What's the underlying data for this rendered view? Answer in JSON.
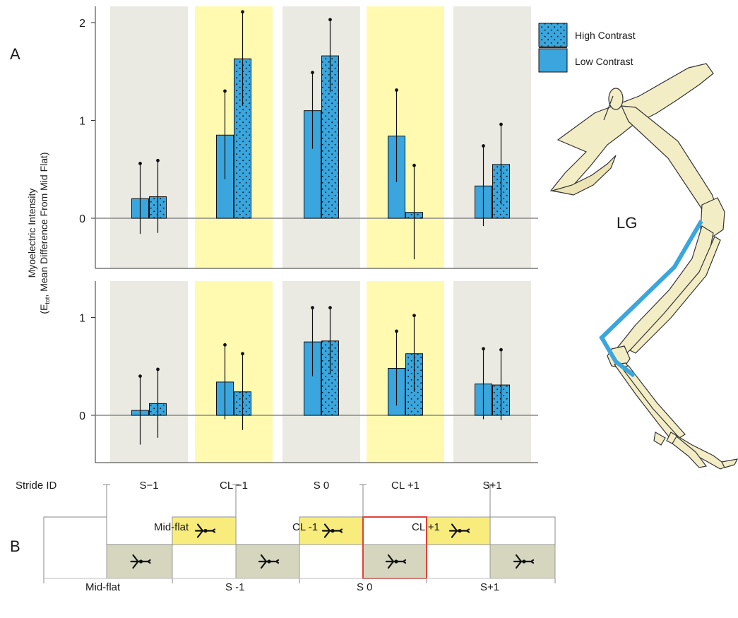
{
  "panel_labels": {
    "a": "A",
    "b": "B"
  },
  "legend": {
    "high": "High Contrast",
    "low": "Low Contrast"
  },
  "ylabel": {
    "line1": "Myoelectric Intensity",
    "line2_pre": "(E",
    "line2_sub": "tot",
    "line2_post": ", Mean Difference From Mid Flat)"
  },
  "stride_id_label": "Stride ID",
  "leg_label": "LG",
  "colors": {
    "bar": "#3aa6dd",
    "grey_band": "#ebeae2",
    "yellow_band": "#fffab0",
    "zero_line": "#888888",
    "step_yellow": "#f8ec7c",
    "step_grey": "#d6d6bf",
    "highlight": "#e0403a",
    "muscle": "#3aa6dd",
    "bone": "#f3edc6"
  },
  "chart_data": [
    {
      "type": "bar",
      "panel": "upper",
      "categories": [
        "S−1",
        "CL −1",
        "S 0",
        "CL +1",
        "S+1"
      ],
      "category_bands": [
        "grey",
        "yellow",
        "grey",
        "yellow",
        "grey"
      ],
      "series": [
        {
          "name": "Low Contrast",
          "values": [
            0.2,
            0.85,
            1.1,
            0.84,
            0.33
          ],
          "error": [
            0.36,
            0.45,
            0.39,
            0.47,
            0.41
          ]
        },
        {
          "name": "High Contrast",
          "values": [
            0.22,
            1.63,
            1.66,
            0.06,
            0.55
          ],
          "error": [
            0.37,
            0.48,
            0.37,
            0.48,
            0.41
          ]
        }
      ],
      "yticks": [
        0,
        1,
        2
      ],
      "ylim": [
        -0.5,
        2.15
      ],
      "legend_position": "top-right"
    },
    {
      "type": "bar",
      "panel": "lower",
      "categories": [
        "S−1",
        "CL −1",
        "S 0",
        "CL +1",
        "S+1"
      ],
      "category_bands": [
        "grey",
        "yellow",
        "grey",
        "yellow",
        "grey"
      ],
      "series": [
        {
          "name": "Low Contrast",
          "values": [
            0.05,
            0.34,
            0.75,
            0.48,
            0.32
          ],
          "error": [
            0.35,
            0.38,
            0.35,
            0.38,
            0.36
          ]
        },
        {
          "name": "High Contrast",
          "values": [
            0.12,
            0.24,
            0.76,
            0.63,
            0.31
          ],
          "error": [
            0.35,
            0.39,
            0.34,
            0.39,
            0.36
          ]
        }
      ],
      "yticks": [
        0,
        1
      ],
      "ylim": [
        -0.47,
        1.35
      ]
    }
  ],
  "steps_diagram": {
    "upper_labels": [
      "Mid-flat",
      "CL -1",
      "CL +1"
    ],
    "lower_labels": [
      "Mid-flat",
      "S -1",
      "S 0",
      "S+1"
    ],
    "highlighted": "S 0"
  }
}
